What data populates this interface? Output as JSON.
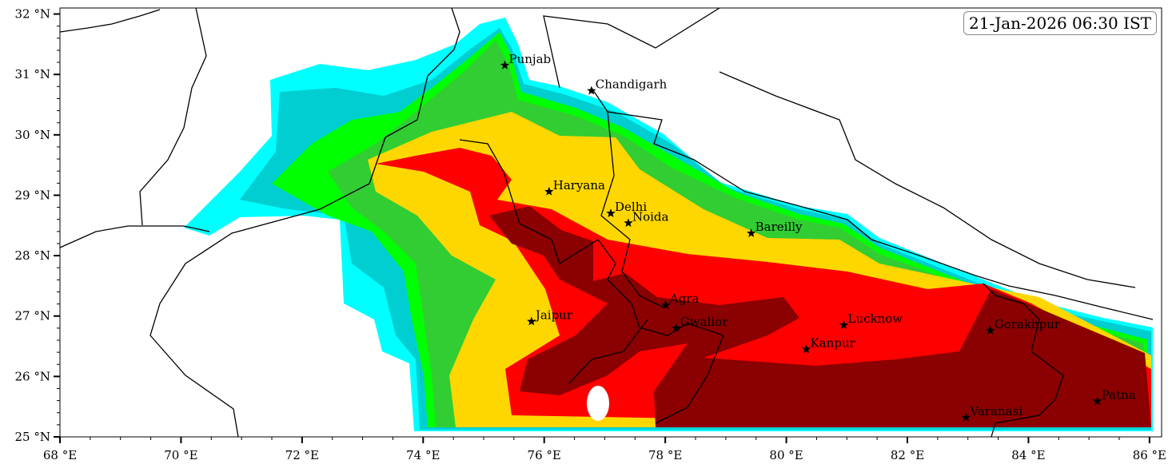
{
  "timestamp": "21-Jan-2026 06:30 IST",
  "axes": {
    "x_ticks": [
      {
        "value": 68,
        "label": "68 °E"
      },
      {
        "value": 70,
        "label": "70 °E"
      },
      {
        "value": 72,
        "label": "72 °E"
      },
      {
        "value": 74,
        "label": "74 °E"
      },
      {
        "value": 76,
        "label": "76 °E"
      },
      {
        "value": 78,
        "label": "78 °E"
      },
      {
        "value": 80,
        "label": "80 °E"
      },
      {
        "value": 82,
        "label": "82 °E"
      },
      {
        "value": 84,
        "label": "84 °E"
      },
      {
        "value": 86,
        "label": "86 °E"
      }
    ],
    "y_ticks": [
      {
        "value": 25,
        "label": "25 °N"
      },
      {
        "value": 26,
        "label": "26 °N"
      },
      {
        "value": 27,
        "label": "27 °N"
      },
      {
        "value": 28,
        "label": "28 °N"
      },
      {
        "value": 29,
        "label": "29 °N"
      },
      {
        "value": 30,
        "label": "30 °N"
      },
      {
        "value": 31,
        "label": "31 °N"
      },
      {
        "value": 32,
        "label": "32 °N"
      }
    ],
    "lon_range": [
      68,
      86.2
    ],
    "lat_range": [
      25,
      32.1
    ]
  },
  "fill_levels_colors": [
    "#00FFFF",
    "#00CED1",
    "#00FF00",
    "#32CD32",
    "#FFD700",
    "#FF0000",
    "#8B0000"
  ],
  "cities": [
    {
      "name": "Punjab",
      "lon": 75.35,
      "lat": 31.15
    },
    {
      "name": "Chandigarh",
      "lon": 76.78,
      "lat": 30.73
    },
    {
      "name": "Haryana",
      "lon": 76.08,
      "lat": 29.06
    },
    {
      "name": "Delhi",
      "lon": 77.1,
      "lat": 28.7
    },
    {
      "name": "Noida",
      "lon": 77.39,
      "lat": 28.54
    },
    {
      "name": "Bareilly",
      "lon": 79.42,
      "lat": 28.37
    },
    {
      "name": "Agra",
      "lon": 78.01,
      "lat": 27.18
    },
    {
      "name": "Jaipur",
      "lon": 75.79,
      "lat": 26.91
    },
    {
      "name": "Gwalior",
      "lon": 78.18,
      "lat": 26.8
    },
    {
      "name": "Lucknow",
      "lon": 80.95,
      "lat": 26.85
    },
    {
      "name": "Gorakhpur",
      "lon": 83.37,
      "lat": 26.76
    },
    {
      "name": "Kanpur",
      "lon": 80.33,
      "lat": 26.45
    },
    {
      "name": "Varanasi",
      "lon": 82.97,
      "lat": 25.32
    },
    {
      "name": "Patna",
      "lon": 85.14,
      "lat": 25.59
    }
  ]
}
